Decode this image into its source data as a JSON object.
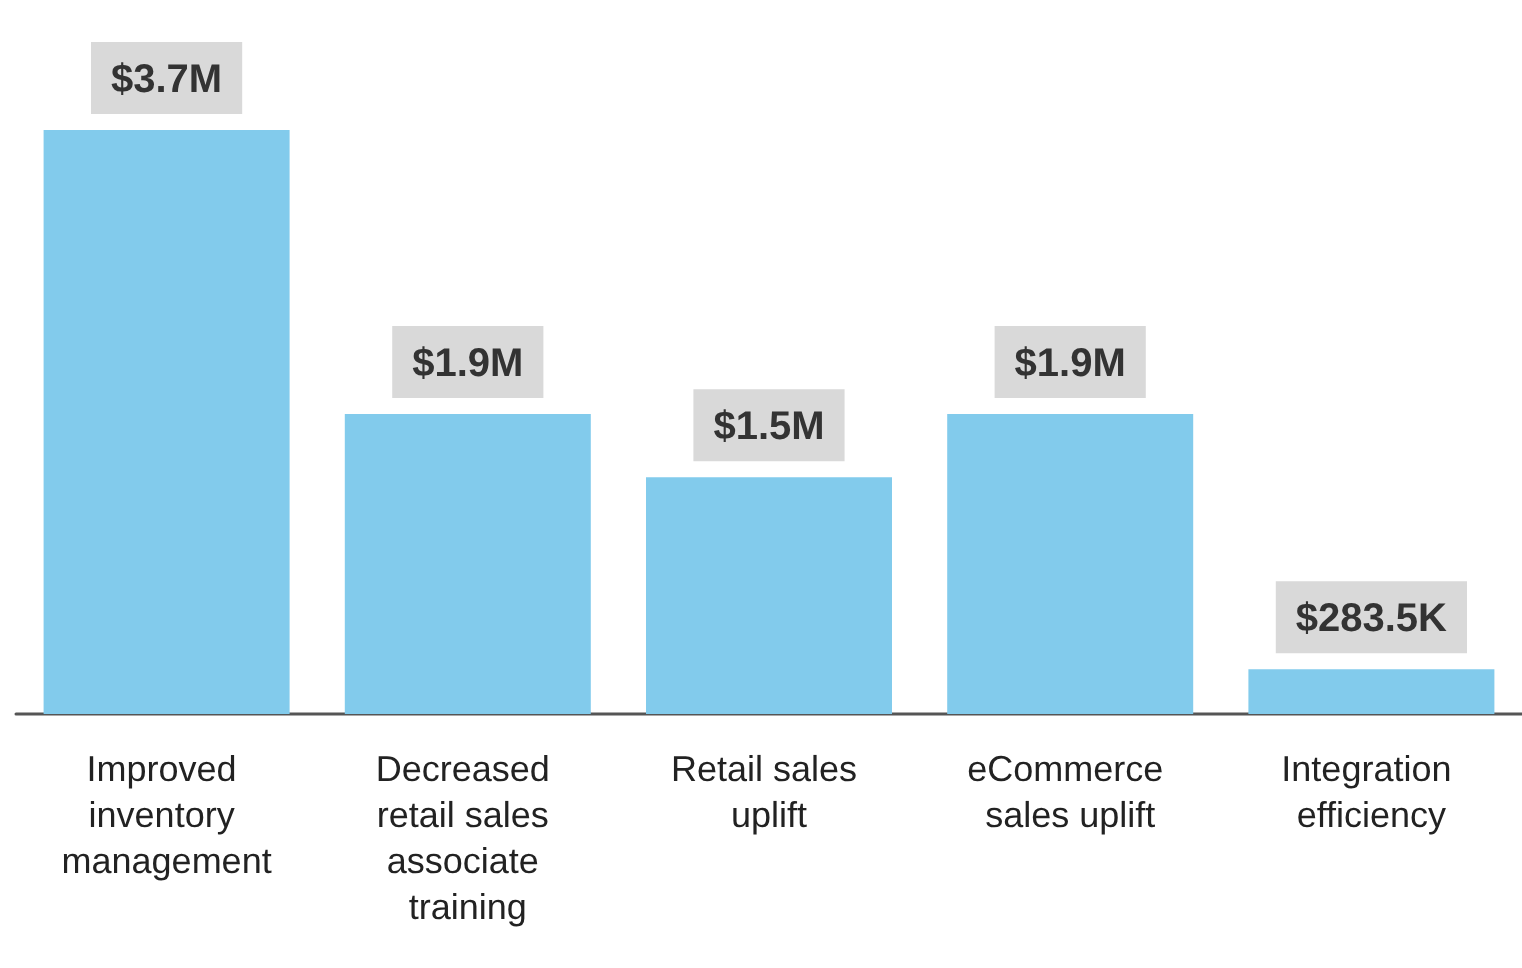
{
  "chart_data": {
    "type": "bar",
    "categories": [
      "Improved inventory management",
      "Decreased retail sales associate training",
      "Retail sales uplift",
      "eCommerce sales uplift",
      "Integration efficiency"
    ],
    "values": [
      3700000,
      1900000,
      1500000,
      1900000,
      283500
    ],
    "value_labels": [
      "$3.7M",
      "$1.9M",
      "$1.5M",
      "$1.9M",
      "$283.5K"
    ],
    "color": "#82cbec"
  }
}
